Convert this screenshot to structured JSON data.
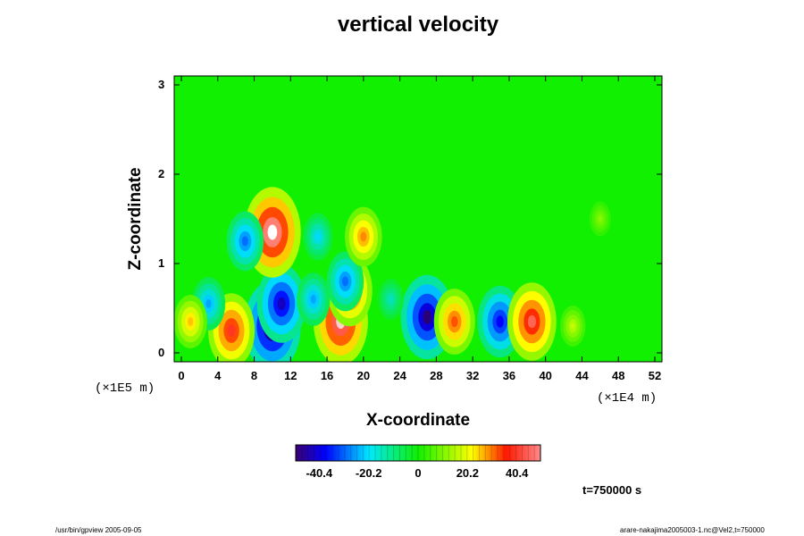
{
  "chart_data": {
    "type": "heatmap",
    "title": "vertical velocity",
    "xlabel": "X-coordinate",
    "ylabel": "Z-coordinate",
    "x_unit": "(×1E4 m)",
    "z_unit": "(×1E5 m)",
    "xlim": [
      0,
      52
    ],
    "zlim": [
      0,
      3
    ],
    "x_ticks": [
      "0",
      "4",
      "8",
      "12",
      "16",
      "20",
      "24",
      "28",
      "32",
      "36",
      "40",
      "44",
      "48",
      "52"
    ],
    "z_ticks": [
      "0",
      "1",
      "2",
      "3"
    ],
    "colorbar": {
      "ticks": [
        "-40.4",
        "-20.2",
        "0",
        "20.2",
        "40.4"
      ],
      "tick_values": [
        -40.4,
        -20.2,
        0,
        20.2,
        40.4
      ],
      "range": [
        -50,
        50
      ]
    },
    "features": [
      {
        "x": 10,
        "z": 0.3,
        "value": -55
      },
      {
        "x": 11,
        "z": 0.55,
        "value": -45
      },
      {
        "x": 10,
        "z": 1.35,
        "value": 55
      },
      {
        "x": 7,
        "z": 1.25,
        "value": -30
      },
      {
        "x": 5.5,
        "z": 0.25,
        "value": 42
      },
      {
        "x": 3,
        "z": 0.55,
        "value": -25
      },
      {
        "x": 1,
        "z": 0.35,
        "value": 25
      },
      {
        "x": 17.5,
        "z": 0.35,
        "value": 52
      },
      {
        "x": 18.5,
        "z": 0.7,
        "value": 40
      },
      {
        "x": 14.5,
        "z": 0.6,
        "value": -25
      },
      {
        "x": 18,
        "z": 0.8,
        "value": -30
      },
      {
        "x": 27,
        "z": 0.4,
        "value": -50
      },
      {
        "x": 30,
        "z": 0.35,
        "value": 35
      },
      {
        "x": 35,
        "z": 0.35,
        "value": -40
      },
      {
        "x": 38.5,
        "z": 0.35,
        "value": 45
      },
      {
        "x": 43,
        "z": 0.3,
        "value": 15
      },
      {
        "x": 23,
        "z": 0.6,
        "value": -15
      },
      {
        "x": 46,
        "z": 1.5,
        "value": 10
      },
      {
        "x": 20,
        "z": 1.3,
        "value": 30
      },
      {
        "x": 15,
        "z": 1.3,
        "value": -20
      }
    ]
  },
  "time_label": "t=750000 s",
  "footer_left": "/usr/bin/gpview 2005-09-05",
  "footer_right": "arare-nakajima2005003-1.nc@Vel2,t=750000"
}
